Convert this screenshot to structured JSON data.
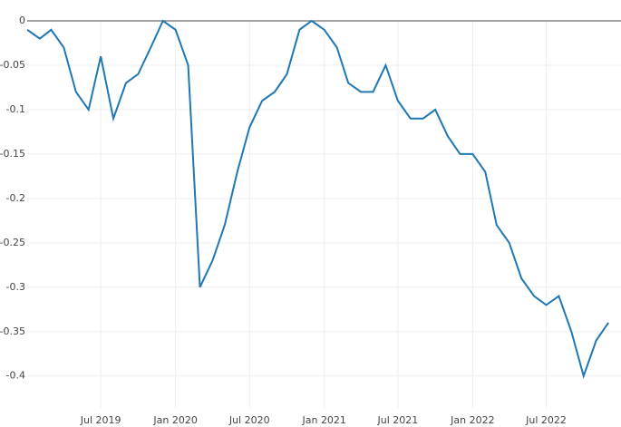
{
  "chart_data": {
    "type": "line",
    "x": [
      "2019-01",
      "2019-02",
      "2019-03",
      "2019-04",
      "2019-05",
      "2019-06",
      "2019-07",
      "2019-08",
      "2019-09",
      "2019-10",
      "2019-11",
      "2019-12",
      "2020-01",
      "2020-02",
      "2020-03",
      "2020-04",
      "2020-05",
      "2020-06",
      "2020-07",
      "2020-08",
      "2020-09",
      "2020-10",
      "2020-11",
      "2020-12",
      "2021-01",
      "2021-02",
      "2021-03",
      "2021-04",
      "2021-05",
      "2021-06",
      "2021-07",
      "2021-08",
      "2021-09",
      "2021-10",
      "2021-11",
      "2021-12",
      "2022-01",
      "2022-02",
      "2022-03",
      "2022-04",
      "2022-05",
      "2022-06",
      "2022-07",
      "2022-08",
      "2022-09",
      "2022-10",
      "2022-11",
      "2022-12"
    ],
    "series": [
      {
        "color": "#1f77b4",
        "values": [
          -0.01,
          -0.02,
          -0.01,
          -0.03,
          -0.08,
          -0.1,
          -0.04,
          -0.11,
          -0.07,
          -0.06,
          -0.03,
          0,
          -0.01,
          -0.05,
          -0.3,
          -0.27,
          -0.23,
          -0.17,
          -0.12,
          -0.09,
          -0.08,
          -0.06,
          -0.01,
          0,
          -0.01,
          -0.03,
          -0.07,
          -0.08,
          -0.08,
          -0.05,
          -0.09,
          -0.11,
          -0.11,
          -0.1,
          -0.13,
          -0.15,
          -0.15,
          -0.17,
          -0.23,
          -0.25,
          -0.29,
          -0.31,
          -0.32,
          -0.31,
          -0.35,
          -0.4,
          -0.36,
          -0.34
        ]
      }
    ],
    "xlim": [
      "2019-01",
      "2023-01"
    ],
    "xticks": [
      {
        "value": "2019-07",
        "label": "Jul 2019"
      },
      {
        "value": "2020-01",
        "label": "Jan 2020"
      },
      {
        "value": "2020-07",
        "label": "Jul 2020"
      },
      {
        "value": "2021-01",
        "label": "Jan 2021"
      },
      {
        "value": "2021-07",
        "label": "Jul 2021"
      },
      {
        "value": "2022-01",
        "label": "Jan 2022"
      },
      {
        "value": "2022-07",
        "label": "Jul 2022"
      }
    ],
    "ylim": [
      -0.436,
      0
    ],
    "yticks": [
      0,
      -0.05,
      -0.1,
      -0.15,
      -0.2,
      -0.25,
      -0.3,
      -0.35,
      -0.4
    ],
    "grid": true
  }
}
